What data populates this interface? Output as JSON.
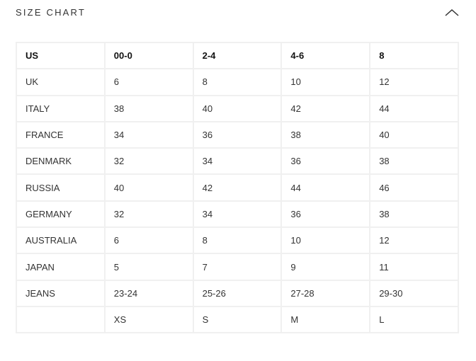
{
  "section": {
    "title": "SIZE CHART",
    "toggle_icon": "chevron-up-icon"
  },
  "table": {
    "rows": [
      {
        "label": "US",
        "values": [
          "00-0",
          "2-4",
          "4-6",
          "8"
        ]
      },
      {
        "label": "UK",
        "values": [
          "6",
          "8",
          "10",
          "12"
        ]
      },
      {
        "label": "ITALY",
        "values": [
          "38",
          "40",
          "42",
          "44"
        ]
      },
      {
        "label": "FRANCE",
        "values": [
          "34",
          "36",
          "38",
          "40"
        ]
      },
      {
        "label": "DENMARK",
        "values": [
          "32",
          "34",
          "36",
          "38"
        ]
      },
      {
        "label": "RUSSIA",
        "values": [
          "40",
          "42",
          "44",
          "46"
        ]
      },
      {
        "label": "GERMANY",
        "values": [
          "32",
          "34",
          "36",
          "38"
        ]
      },
      {
        "label": "AUSTRALIA",
        "values": [
          "6",
          "8",
          "10",
          "12"
        ]
      },
      {
        "label": "JAPAN",
        "values": [
          "5",
          "7",
          "9",
          "11"
        ]
      },
      {
        "label": "JEANS",
        "values": [
          "23-24",
          "25-26",
          "27-28",
          "29-30"
        ]
      },
      {
        "label": "",
        "values": [
          "XS",
          "S",
          "M",
          "L"
        ]
      }
    ]
  }
}
